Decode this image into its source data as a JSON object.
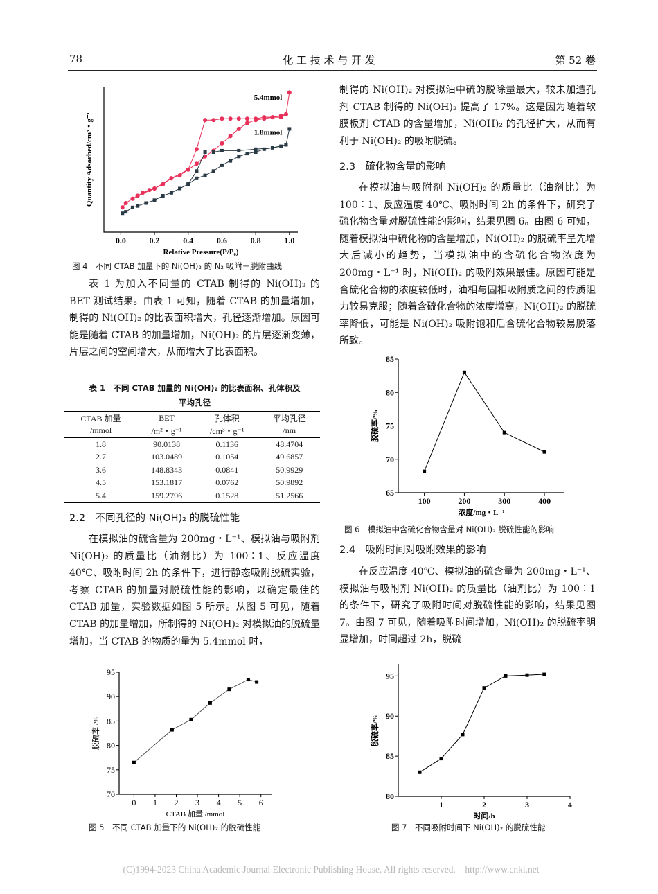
{
  "header": {
    "page_number": "78",
    "journal": "化 工 技 术 与 开 发",
    "volume": "第 52 卷"
  },
  "left": {
    "fig4_caption": "图 4　不同 CTAB 加量下的 Ni(OH)₂ 的 N₂ 吸附－脱附曲线",
    "para1": "表 1 为加入不同量的 CTAB 制得的 Ni(OH)₂ 的 BET 测试结果。由表 1 可知，随着 CTAB 的加量增加，制得的 Ni(OH)₂ 的比表面积增大，孔径逐渐增加。原因可能是随着 CTAB 的加量增加，Ni(OH)₂ 的片层逐渐变薄，片层之间的空间增大，从而增大了比表面积。",
    "table_caption_1": "表 1　不同 CTAB 加量的 Ni(OH)₂ 的比表面积、孔体积及",
    "table_caption_2": "平均孔径",
    "table": {
      "headers": [
        [
          "CTAB 加量",
          "/mmol"
        ],
        [
          "BET",
          "/m²・g⁻¹"
        ],
        [
          "孔体积",
          "/cm³・g⁻¹"
        ],
        [
          "平均孔径",
          "/nm"
        ]
      ],
      "rows": [
        [
          "1.8",
          "90.0138",
          "0.1136",
          "48.4704"
        ],
        [
          "2.7",
          "103.0489",
          "0.1054",
          "49.6857"
        ],
        [
          "3.6",
          "148.8343",
          "0.0841",
          "50.9929"
        ],
        [
          "4.5",
          "153.1817",
          "0.0762",
          "50.9892"
        ],
        [
          "5.4",
          "159.2796",
          "0.1528",
          "51.2566"
        ]
      ]
    },
    "heading_2_2": "2.2　不同孔径的 Ni(OH)₂ 的脱硫性能",
    "para2": "在模拟油的硫含量为 200mg・L⁻¹、模拟油与吸附剂 Ni(OH)₂ 的质量比（油剂比）为 100∶1、反应温度 40℃、吸附时间 2h 的条件下，进行静态吸附脱硫实验，考察 CTAB 的加量对脱硫性能的影响，以确定最佳的 CTAB 加量，实验数据如图 5 所示。从图 5 可见，随着 CTAB 的加量增加，所制得的 Ni(OH)₂ 对模拟油的脱硫量增加，当 CTAB 的物质的量为 5.4mmol 时，",
    "fig5_caption": "图 5　不同 CTAB 加量下的 Ni(OH)₂ 的脱硫性能"
  },
  "right": {
    "para1": "制得的 Ni(OH)₂ 对模拟油中硫的脱除量最大，较未加造孔剂 CTAB 制得的 Ni(OH)₂ 提高了 17%。这是因为随着软膜板剂 CTAB 的含量增加，Ni(OH)₂ 的孔径扩大，从而有利于 Ni(OH)₂ 的吸附脱硫。",
    "heading_2_3": "2.3　硫化物含量的影响",
    "para2": "在模拟油与吸附剂 Ni(OH)₂ 的质量比（油剂比）为 100∶1、反应温度 40℃、吸附时间 2h 的条件下，研究了硫化物含量对脱硫性能的影响，结果见图 6。由图 6 可知，随着模拟油中硫化物的含量增加，Ni(OH)₂ 的脱硫率呈先增大后减小的趋势，当模拟油中的含硫化合物浓度为 200mg・L⁻¹ 时，Ni(OH)₂ 的吸附效果最佳。原因可能是含硫化合物的浓度较低时，油相与固相吸附质之间的传质阻力较易克服；随着含硫化合物的浓度增高，Ni(OH)₂ 的脱硫率降低，可能是 Ni(OH)₂ 吸附饱和后含硫化合物较易脱落所致。",
    "fig6_caption": "图 6　模拟油中含硫化合物含量对 Ni(OH)₂ 脱硫性能的影响",
    "heading_2_4": "2.4　吸附时间对吸附效果的影响",
    "para3": "在反应温度 40℃、模拟油的硫含量为 200mg・L⁻¹、模拟油与吸附剂 Ni(OH)₂ 的质量比（油剂比）为 100∶1 的条件下，研究了吸附时间对脱硫性能的影响，结果见图 7。由图 7 可见，随着吸附时间增加，Ni(OH)₂ 的脱硫率明显增加，时间超过 2h，脱硫",
    "fig7_caption": "图 7　不同吸附时间下 Ni(OH)₂ 的脱硫性能"
  },
  "footer": "(C)1994-2023 China Academic Journal Electronic Publishing House. All rights reserved.　http://www.cnki.net",
  "chart_data": [
    {
      "id": "fig4",
      "type": "line",
      "xlabel": "Relative Pressure(P/P₀)",
      "ylabel": "Quantity Adsorbed/cm³・g⁻¹",
      "xlim": [
        -0.1,
        1.05
      ],
      "xticks": [
        "0.0",
        "0.2",
        "0.4",
        "0.6",
        "0.8",
        "1.0"
      ],
      "ylim": [
        0,
        100
      ],
      "y_ticks_shown": false,
      "series": [
        {
          "name": "5.4mmol",
          "color": "#e8315a",
          "marker": "circle",
          "x": [
            0.01,
            0.03,
            0.07,
            0.1,
            0.13,
            0.17,
            0.2,
            0.25,
            0.3,
            0.35,
            0.4,
            0.45,
            0.5,
            0.55,
            0.6,
            0.65,
            0.7,
            0.75,
            0.8,
            0.85,
            0.9,
            0.95,
            0.98,
            1.0,
            0.98,
            0.95,
            0.9,
            0.85,
            0.8,
            0.75,
            0.7,
            0.65,
            0.6,
            0.55,
            0.5,
            0.45,
            0.4,
            0.3,
            0.2,
            0.1,
            0.07
          ],
          "y": [
            17,
            20,
            23,
            25,
            27,
            29,
            30,
            33,
            37,
            39,
            43,
            47,
            52,
            56,
            61,
            66,
            71,
            75,
            77,
            78,
            79,
            79,
            81,
            96,
            81,
            80,
            79,
            79,
            78,
            78,
            78,
            78,
            78,
            77,
            77,
            57,
            43,
            37,
            30,
            25,
            23
          ]
        },
        {
          "name": "1.8mmol",
          "color": "#2a3a45",
          "marker": "square",
          "x": [
            0.01,
            0.03,
            0.07,
            0.1,
            0.15,
            0.2,
            0.25,
            0.3,
            0.35,
            0.4,
            0.45,
            0.5,
            0.55,
            0.6,
            0.65,
            0.7,
            0.75,
            0.8,
            0.85,
            0.9,
            0.95,
            0.98,
            1.0,
            0.98,
            0.9,
            0.8,
            0.7,
            0.6,
            0.55,
            0.5,
            0.45,
            0.4
          ],
          "y": [
            13,
            14,
            17,
            18,
            20,
            22,
            25,
            27,
            30,
            33,
            37,
            39,
            42,
            46,
            49,
            52,
            54,
            55,
            57,
            58,
            59,
            60,
            71,
            60,
            58,
            57,
            56,
            56,
            55,
            55,
            42,
            33
          ]
        }
      ]
    },
    {
      "id": "fig5",
      "type": "line",
      "xlabel": "CTAB 加量 /mmol",
      "ylabel": "脱硫率 /%",
      "xlim": [
        -0.7,
        6.5
      ],
      "ylim": [
        70,
        95
      ],
      "xticks": [
        0,
        1,
        2,
        3,
        4,
        5,
        6
      ],
      "yticks": [
        70,
        75,
        80,
        85,
        90,
        95
      ],
      "color": "#555555",
      "x": [
        0,
        1.8,
        2.7,
        3.6,
        4.5,
        5.4,
        5.8
      ],
      "y": [
        76.5,
        83.2,
        85.3,
        88.7,
        91.5,
        93.5,
        93.0
      ]
    },
    {
      "id": "fig6",
      "type": "line",
      "xlabel": "浓度/mg・L⁻¹",
      "ylabel": "脱硫率/%",
      "xlim": [
        35,
        450
      ],
      "ylim": [
        65,
        85
      ],
      "xticks": [
        100,
        200,
        300,
        400
      ],
      "yticks": [
        65,
        70,
        75,
        80,
        85
      ],
      "color": "#000000",
      "x": [
        100,
        200,
        300,
        400
      ],
      "y": [
        68.2,
        83.0,
        74.0,
        71.1
      ]
    },
    {
      "id": "fig7",
      "type": "line",
      "xlabel": "时间/h",
      "ylabel": "脱硫率/%",
      "xlim": [
        0,
        4
      ],
      "ylim": [
        80,
        96.5
      ],
      "xticks": [
        1,
        2,
        3,
        4
      ],
      "yticks": [
        80,
        85,
        90,
        95
      ],
      "color": "#000000",
      "x": [
        0.5,
        1,
        1.5,
        2,
        2.5,
        3,
        3.4
      ],
      "y": [
        83.0,
        84.7,
        87.7,
        93.5,
        95.0,
        95.1,
        95.2
      ]
    }
  ]
}
